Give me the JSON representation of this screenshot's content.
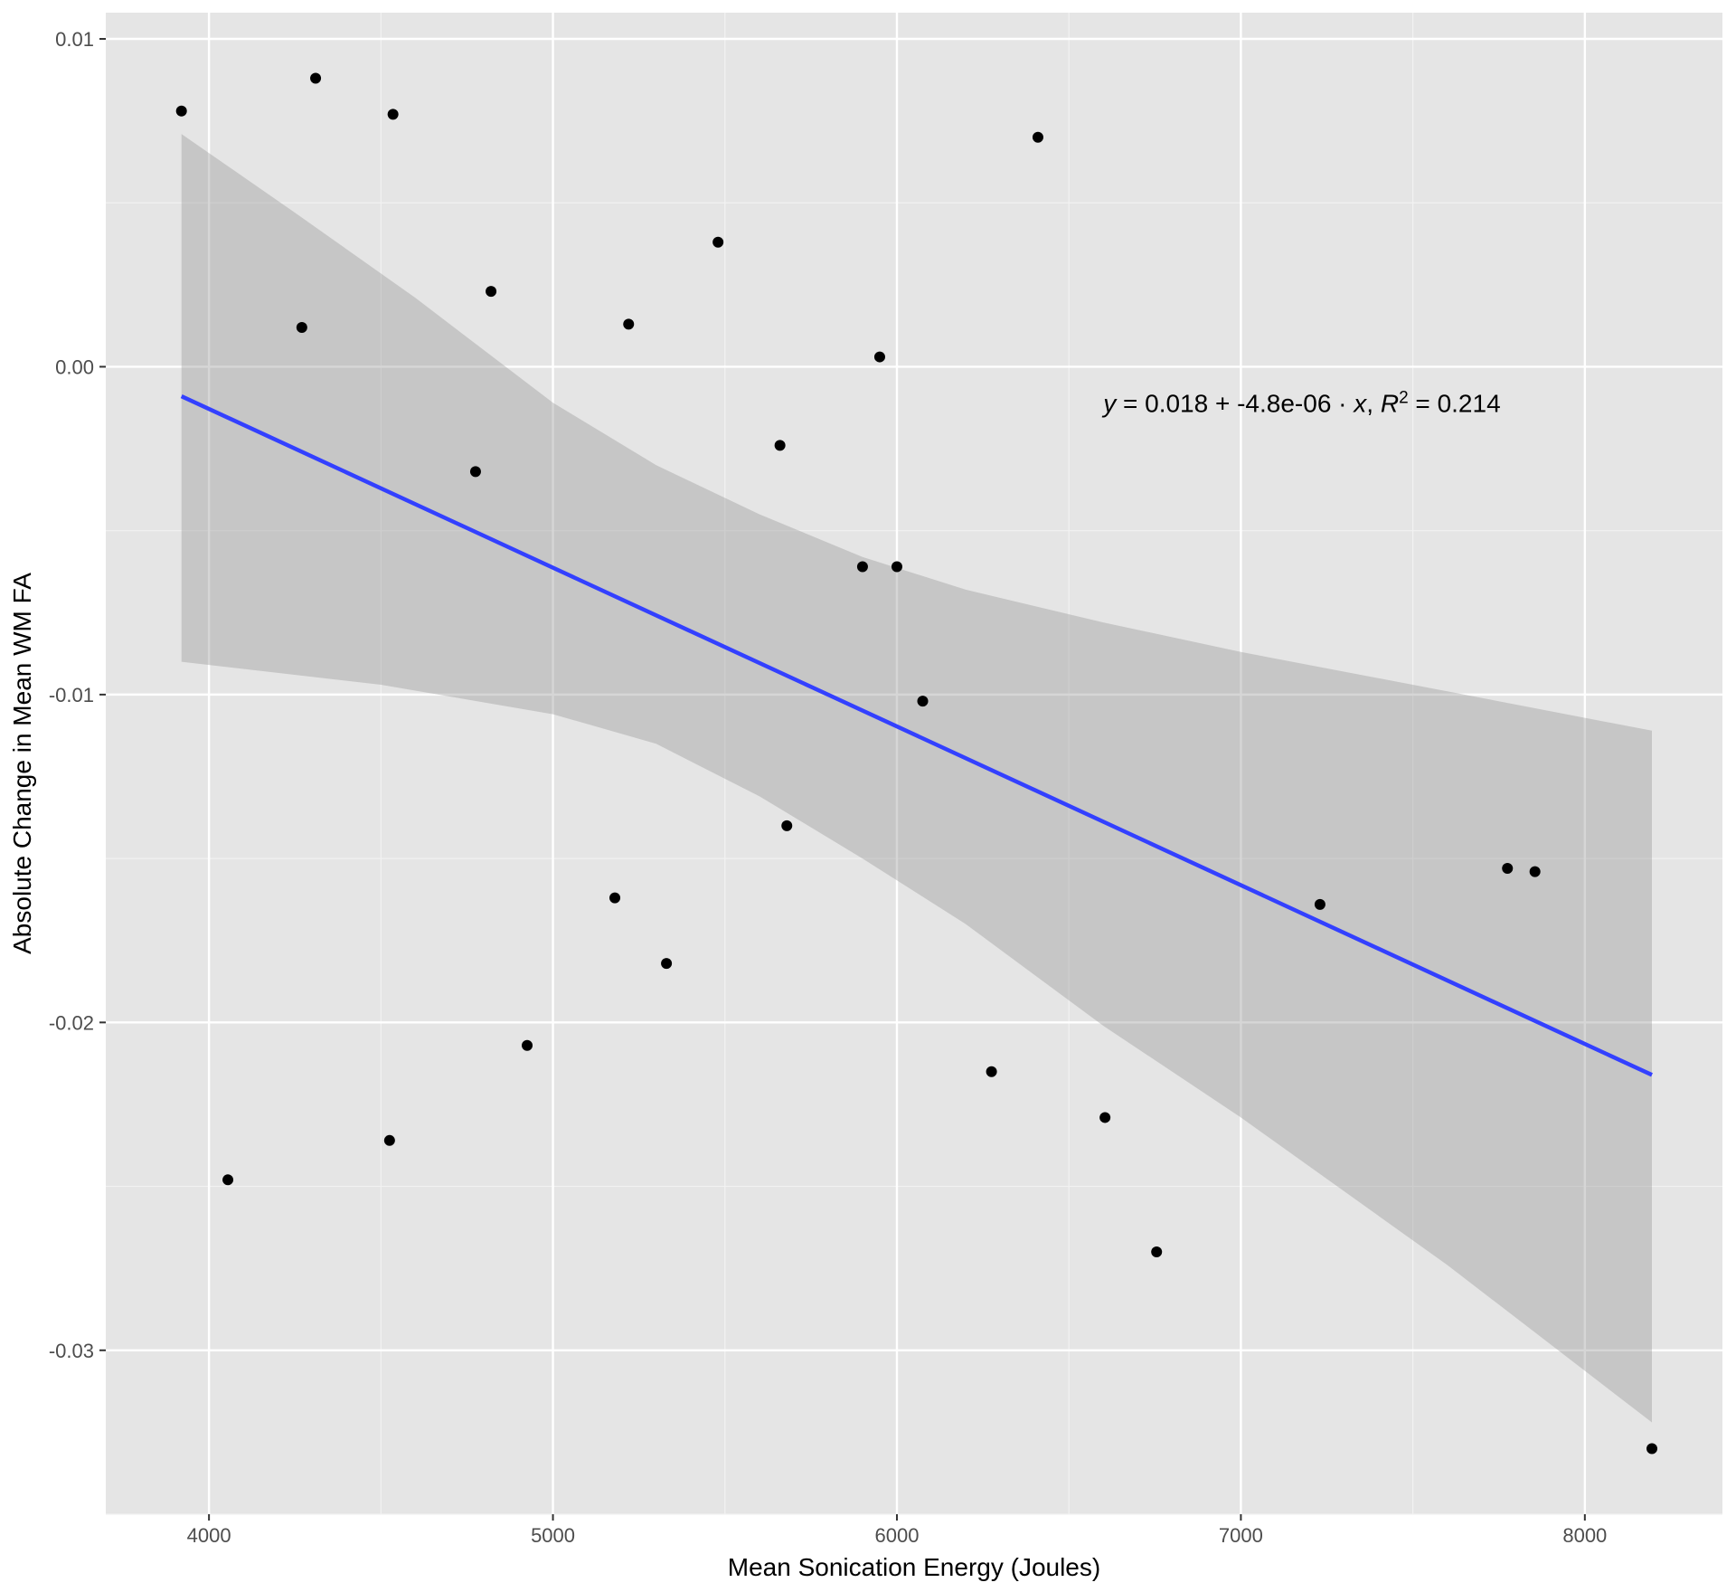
{
  "chart_data": {
    "type": "scatter",
    "xlabel": "Mean Sonication Energy (Joules)",
    "ylabel": "Absolute Change in Mean WM FA",
    "xlim": [
      3700,
      8400
    ],
    "ylim": [
      -0.035,
      0.0108
    ],
    "x_ticks": [
      4000,
      5000,
      6000,
      7000,
      8000
    ],
    "x_tick_labels": [
      "4000",
      "5000",
      "6000",
      "7000",
      "8000"
    ],
    "y_ticks": [
      -0.03,
      -0.02,
      -0.01,
      0.0,
      0.01
    ],
    "y_tick_labels": [
      "-0.03",
      "-0.02",
      "-0.01",
      "0.00",
      "0.01"
    ],
    "grid": true,
    "legend": "none",
    "colors": {
      "panel": "#e5e5e5",
      "grid": "#ffffff",
      "points": "#000000",
      "fit_line": "#3340ff",
      "ribbon": "#b3b3b3"
    },
    "points": [
      {
        "x": 3920,
        "y": 0.0078
      },
      {
        "x": 4055,
        "y": -0.0248
      },
      {
        "x": 4270,
        "y": 0.0012
      },
      {
        "x": 4310,
        "y": 0.0088
      },
      {
        "x": 4525,
        "y": -0.0236
      },
      {
        "x": 4535,
        "y": 0.0077
      },
      {
        "x": 4775,
        "y": -0.0032
      },
      {
        "x": 4820,
        "y": 0.0023
      },
      {
        "x": 4925,
        "y": -0.0207
      },
      {
        "x": 5180,
        "y": -0.0162
      },
      {
        "x": 5220,
        "y": 0.0013
      },
      {
        "x": 5330,
        "y": -0.0182
      },
      {
        "x": 5480,
        "y": 0.0038
      },
      {
        "x": 5660,
        "y": -0.0024
      },
      {
        "x": 5680,
        "y": -0.014
      },
      {
        "x": 5900,
        "y": -0.0061
      },
      {
        "x": 5950,
        "y": 0.0003
      },
      {
        "x": 6000,
        "y": -0.0061
      },
      {
        "x": 6075,
        "y": -0.0102
      },
      {
        "x": 6275,
        "y": -0.0215
      },
      {
        "x": 6410,
        "y": 0.007
      },
      {
        "x": 6605,
        "y": -0.0229
      },
      {
        "x": 6755,
        "y": -0.027
      },
      {
        "x": 7230,
        "y": -0.0164
      },
      {
        "x": 7775,
        "y": -0.0153
      },
      {
        "x": 7855,
        "y": -0.0154
      },
      {
        "x": 8195,
        "y": -0.033
      }
    ],
    "fit_line": [
      {
        "x": 3920,
        "y": -0.0009
      },
      {
        "x": 8195,
        "y": -0.0216
      }
    ],
    "ribbon_upper": [
      {
        "x": 3920,
        "y": 0.0071
      },
      {
        "x": 4250,
        "y": 0.0047
      },
      {
        "x": 4600,
        "y": 0.0021
      },
      {
        "x": 5000,
        "y": -0.0011
      },
      {
        "x": 5300,
        "y": -0.003
      },
      {
        "x": 5600,
        "y": -0.0045
      },
      {
        "x": 5900,
        "y": -0.0058
      },
      {
        "x": 6200,
        "y": -0.0068
      },
      {
        "x": 6600,
        "y": -0.0078
      },
      {
        "x": 7000,
        "y": -0.0087
      },
      {
        "x": 7600,
        "y": -0.0099
      },
      {
        "x": 8195,
        "y": -0.0111
      }
    ],
    "ribbon_lower": [
      {
        "x": 3920,
        "y": -0.009
      },
      {
        "x": 4500,
        "y": -0.0097
      },
      {
        "x": 5000,
        "y": -0.0106
      },
      {
        "x": 5300,
        "y": -0.0115
      },
      {
        "x": 5600,
        "y": -0.0131
      },
      {
        "x": 5900,
        "y": -0.015
      },
      {
        "x": 6200,
        "y": -0.017
      },
      {
        "x": 6600,
        "y": -0.0201
      },
      {
        "x": 7000,
        "y": -0.0229
      },
      {
        "x": 7600,
        "y": -0.0274
      },
      {
        "x": 8195,
        "y": -0.0322
      }
    ],
    "annotation": {
      "x": 6600,
      "y": -0.0011,
      "eq_y": "y",
      "eq_eq1": " = 0.018 + -4.8e-06 · ",
      "eq_x": "x",
      "eq_sep": ",  ",
      "eq_r": "R",
      "eq_sup": "2",
      "eq_tail": " = 0.214"
    }
  }
}
